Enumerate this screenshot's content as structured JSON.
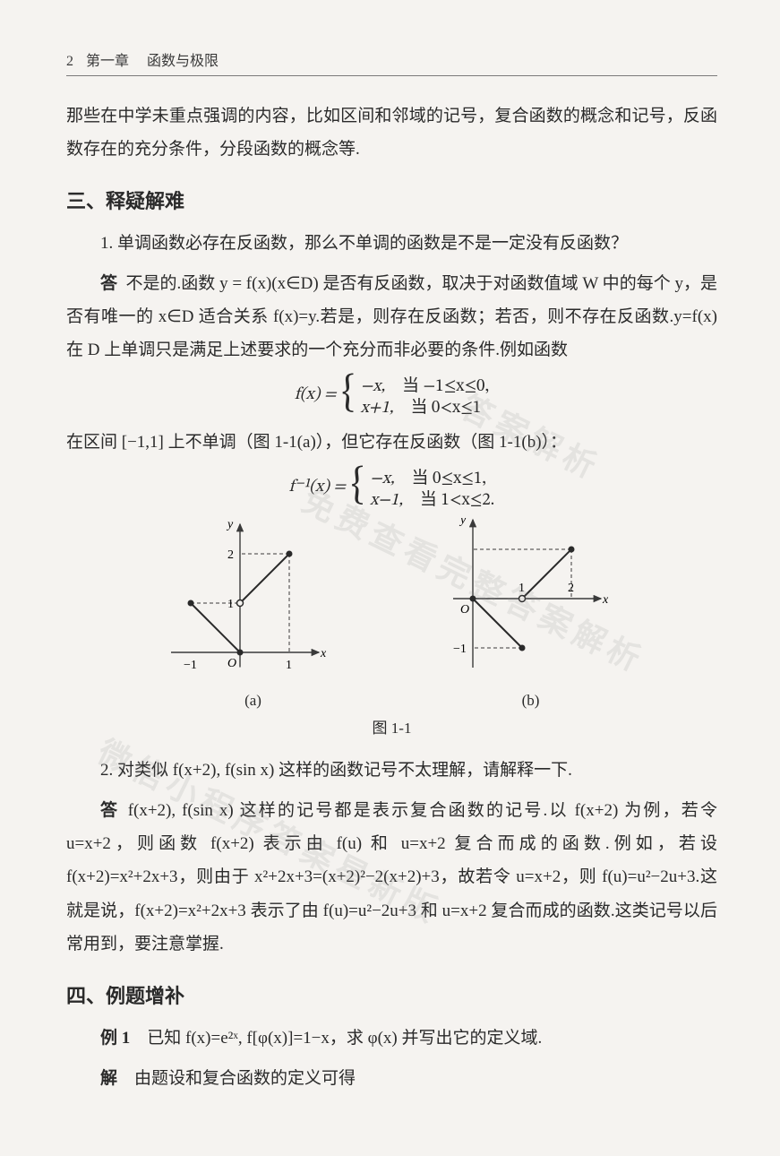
{
  "header": {
    "page_number": "2",
    "chapter": "第一章",
    "title": "函数与极限"
  },
  "intro": "那些在中学未重点强调的内容，比如区间和邻域的记号，复合函数的概念和记号，反函数存在的充分条件，分段函数的概念等.",
  "section3": {
    "heading": "三、释疑解难",
    "q1": {
      "question": "1. 单调函数必存在反函数，那么不单调的函数是不是一定没有反函数？",
      "ans_label": "答",
      "ans_part1": "不是的.函数 y = f(x)(x∈D) 是否有反函数，取决于对函数值域 W 中的每个 y，是否有唯一的 x∈D 适合关系 f(x)=y.若是，则存在反函数；若否，则不存在反函数.y=f(x) 在 D 上单调只是满足上述要求的一个充分而非必要的条件.例如函数",
      "f_def": {
        "lhs": "f(x) =",
        "case1": {
          "expr": "−x,",
          "cond": "当 −1≤x≤0,"
        },
        "case2": {
          "expr": "x+1,",
          "cond": "当 0<x≤1"
        }
      },
      "mid": "在区间 [−1,1] 上不单调（图 1-1(a)），但它存在反函数（图 1-1(b)）：",
      "finv_def": {
        "lhs": "f⁻¹(x) =",
        "case1": {
          "expr": "−x,",
          "cond": "当 0≤x≤1,"
        },
        "case2": {
          "expr": "x−1,",
          "cond": "当 1<x≤2."
        }
      }
    },
    "figure": {
      "caption": "图 1-1",
      "sub_a": "(a)",
      "sub_b": "(b)",
      "axis_color": "#3a3a3a",
      "line_color": "#2a2a2a",
      "dash": "4 3",
      "font_size": 14,
      "point_r": 3.5,
      "a": {
        "xrange": [
          -1,
          1
        ],
        "yrange": [
          0,
          2
        ],
        "yticks": [
          1,
          2
        ],
        "xtick": 1,
        "xneg": -1,
        "open_point": [
          0,
          1
        ],
        "closed_points": [
          [
            -1,
            1
          ],
          [
            0,
            0
          ],
          [
            1,
            2
          ]
        ],
        "segments": [
          [
            [
              -1,
              1
            ],
            [
              0,
              0
            ]
          ],
          [
            [
              0,
              1
            ],
            [
              1,
              2
            ]
          ]
        ],
        "dashes": [
          [
            [
              -1,
              1
            ],
            [
              0,
              1
            ]
          ],
          [
            [
              1,
              2
            ],
            [
              0,
              2
            ]
          ],
          [
            [
              1,
              2
            ],
            [
              1,
              0
            ]
          ]
        ]
      },
      "b": {
        "xrange": [
          0,
          2
        ],
        "yrange": [
          -1,
          1
        ],
        "xticks": [
          1,
          2
        ],
        "yneg": -1,
        "open_point": [
          1,
          0
        ],
        "closed_points": [
          [
            0,
            0
          ],
          [
            1,
            -1
          ],
          [
            2,
            1
          ]
        ],
        "segments": [
          [
            [
              0,
              0
            ],
            [
              1,
              -1
            ]
          ],
          [
            [
              1,
              0
            ],
            [
              2,
              1
            ]
          ]
        ],
        "dashes": [
          [
            [
              1,
              -1
            ],
            [
              0,
              -1
            ]
          ],
          [
            [
              2,
              1
            ],
            [
              0,
              1
            ]
          ],
          [
            [
              2,
              1
            ],
            [
              2,
              0
            ]
          ]
        ]
      }
    },
    "q2": {
      "question": "2. 对类似 f(x+2), f(sin x) 这样的函数记号不太理解，请解释一下.",
      "ans_label": "答",
      "answer": "f(x+2), f(sin x) 这样的记号都是表示复合函数的记号.以 f(x+2) 为例，若令 u=x+2，则函数 f(x+2) 表示由 f(u) 和 u=x+2 复合而成的函数.例如，若设 f(x+2)=x²+2x+3，则由于 x²+2x+3=(x+2)²−2(x+2)+3，故若令 u=x+2，则 f(u)=u²−2u+3.这就是说，f(x+2)=x²+2x+3 表示了由 f(u)=u²−2u+3 和 u=x+2 复合而成的函数.这类记号以后常用到，要注意掌握."
    }
  },
  "section4": {
    "heading": "四、例题增补",
    "ex1": {
      "label": "例 1",
      "problem": "已知 f(x)=e²ˣ, f[φ(x)]=1−x，求 φ(x) 并写出它的定义域.",
      "sol_label": "解",
      "sol": "由题设和复合函数的定义可得"
    }
  },
  "watermarks": {
    "w1": "微信小程序答案星新版",
    "w2": "免费查看完整答案解析",
    "w3": "答案解析"
  }
}
